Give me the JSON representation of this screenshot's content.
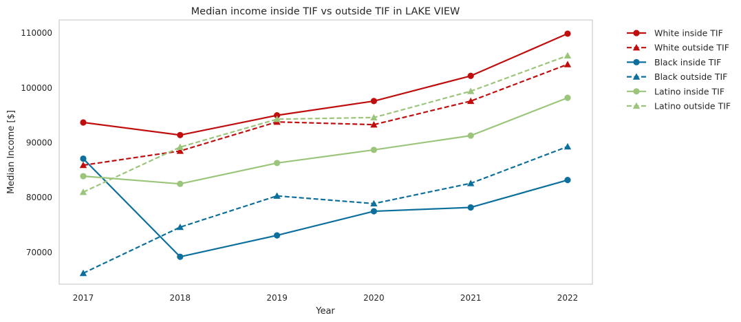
{
  "chart_data": {
    "type": "line",
    "title": "Median income inside TIF vs outside TIF in LAKE VIEW",
    "xlabel": "Year",
    "ylabel": "Median Income [$]",
    "x": [
      2017,
      2018,
      2019,
      2020,
      2021,
      2022
    ],
    "x_tick_labels": [
      "2017",
      "2018",
      "2019",
      "2020",
      "2021",
      "2022"
    ],
    "y_ticks": [
      70000,
      80000,
      90000,
      100000,
      110000
    ],
    "y_tick_labels": [
      "70000",
      "80000",
      "90000",
      "100000",
      "110000"
    ],
    "ylim": [
      64200,
      112400
    ],
    "grid": false,
    "legend_position": "outside top-right",
    "series": [
      {
        "name": "White inside TIF",
        "values": [
          93700,
          91400,
          95000,
          97600,
          102200,
          109900
        ],
        "color": "#c00e0e",
        "linestyle": "solid",
        "marker": "circle"
      },
      {
        "name": "White outside TIF",
        "values": [
          85900,
          88500,
          93800,
          93300,
          97600,
          104300
        ],
        "color": "#c00e0e",
        "linestyle": "dashed",
        "marker": "triangle"
      },
      {
        "name": "Black inside TIF",
        "values": [
          87100,
          69200,
          73100,
          77500,
          78200,
          83200
        ],
        "color": "#0c6f9c",
        "linestyle": "solid",
        "marker": "circle"
      },
      {
        "name": "Black outside TIF",
        "values": [
          66200,
          74600,
          80300,
          78900,
          82600,
          89300
        ],
        "color": "#0c6f9c",
        "linestyle": "dashed",
        "marker": "triangle"
      },
      {
        "name": "Latino inside TIF",
        "values": [
          83900,
          82500,
          86300,
          88700,
          91300,
          98200
        ],
        "color": "#9bc57a",
        "linestyle": "solid",
        "marker": "circle"
      },
      {
        "name": "Latino outside TIF",
        "values": [
          81000,
          89200,
          94300,
          94600,
          99400,
          105900
        ],
        "color": "#9bc57a",
        "linestyle": "dashed",
        "marker": "triangle"
      }
    ]
  }
}
